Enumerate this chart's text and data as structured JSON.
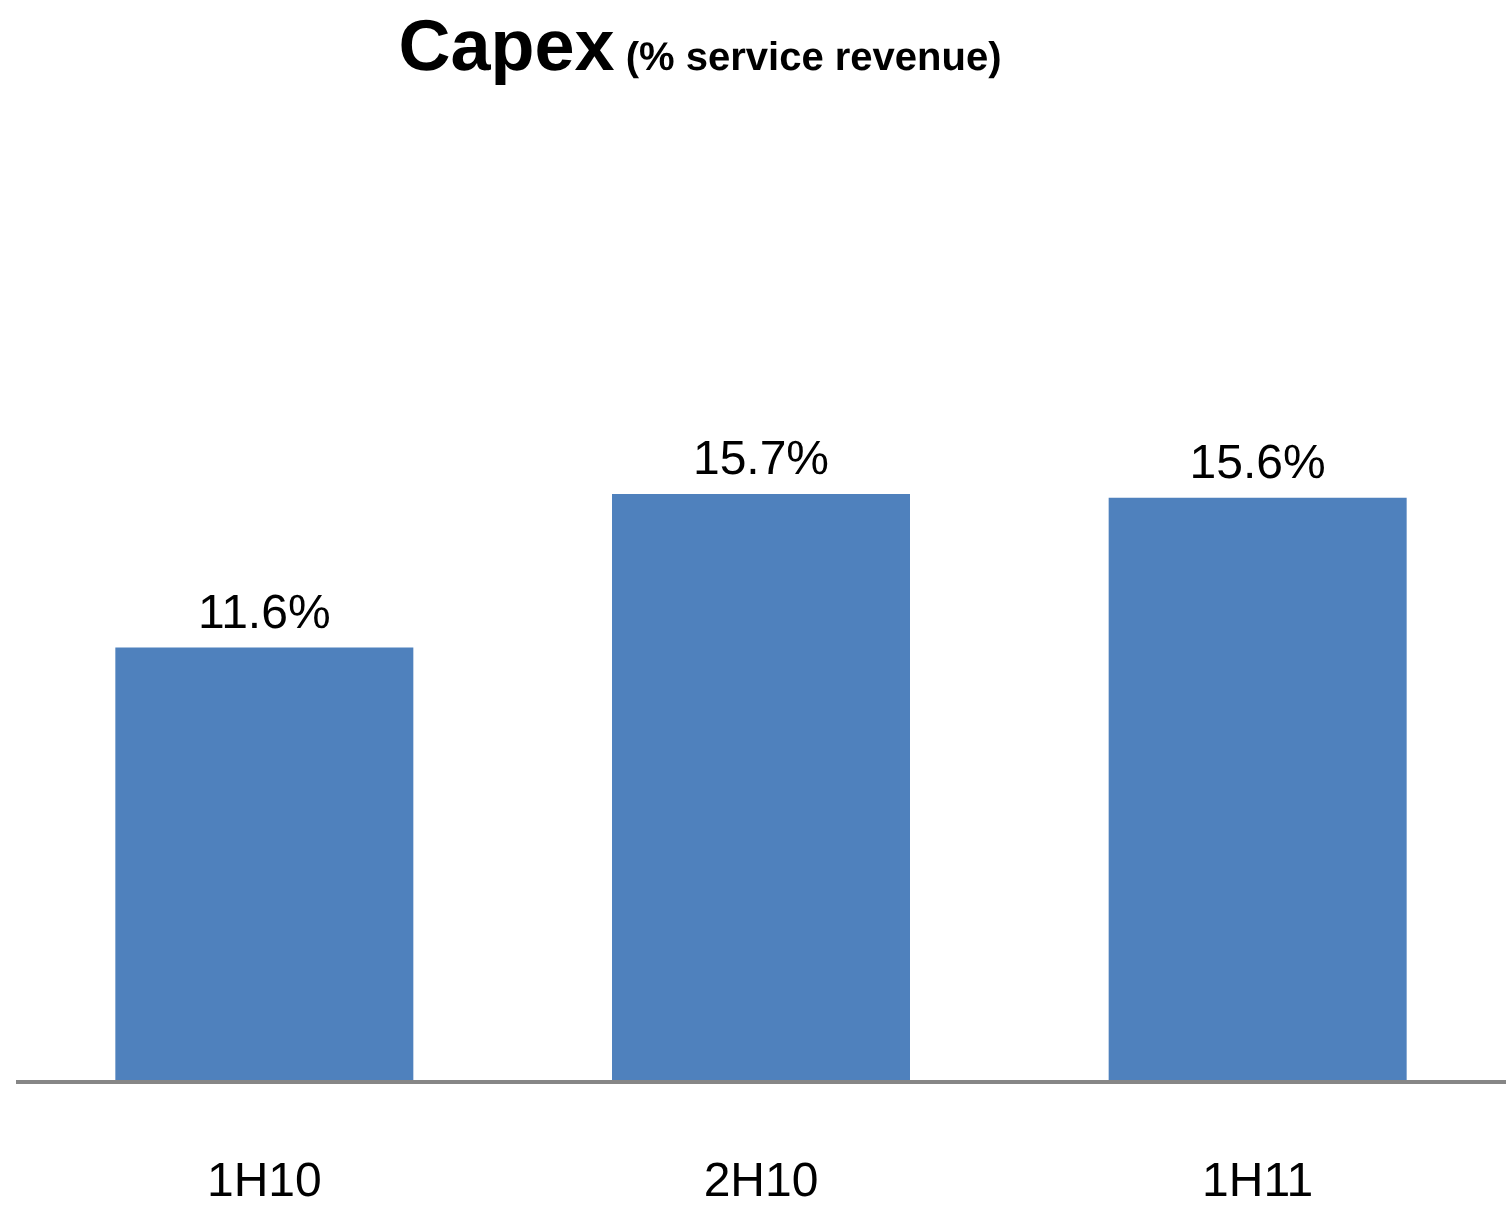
{
  "chart_data": {
    "type": "bar",
    "title": "Capex",
    "subtitle": "(% service revenue)",
    "categories": [
      "1H10",
      "2H10",
      "1H11"
    ],
    "values": [
      11.6,
      15.7,
      15.6
    ],
    "value_labels": [
      "11.6%",
      "15.7%",
      "15.6%"
    ],
    "color": "#4f81bd",
    "grid": false,
    "legend": false
  }
}
